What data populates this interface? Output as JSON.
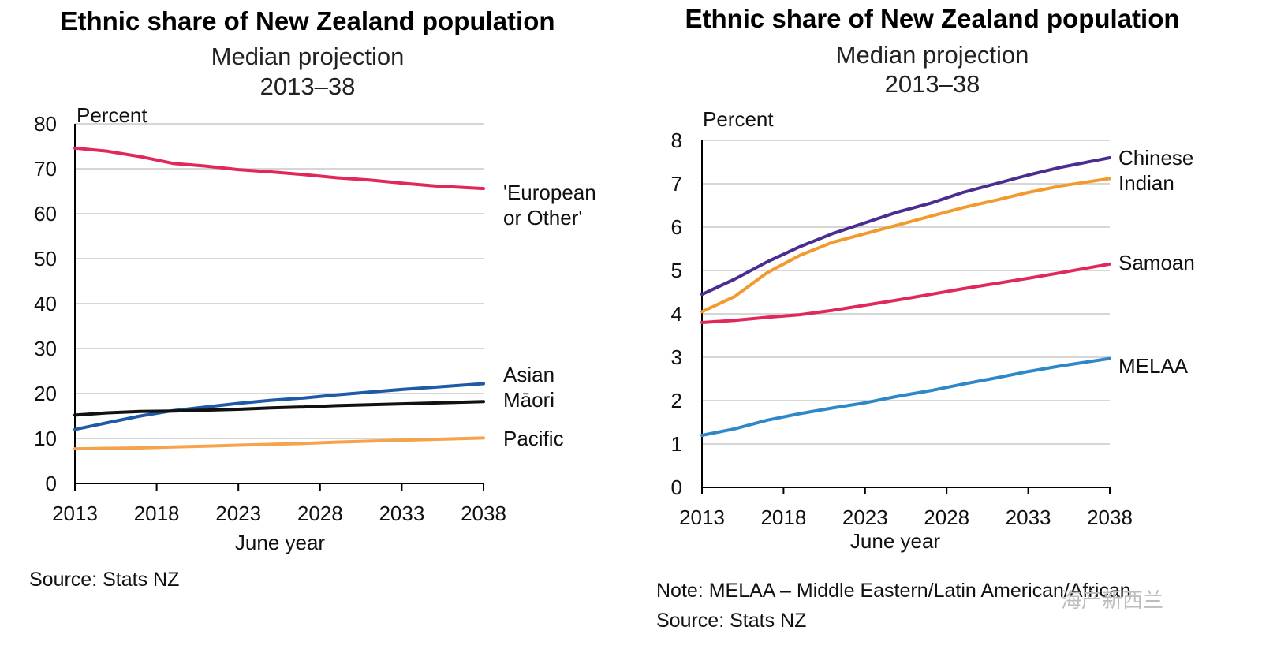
{
  "chart_data": [
    {
      "type": "line",
      "title": "Ethnic share of New Zealand population",
      "subtitle": "Median projection",
      "period": "2013–38",
      "ylabel": "Percent",
      "xlabel": "June year",
      "ylim": [
        0,
        80
      ],
      "yticks": [
        "0",
        "10",
        "20",
        "30",
        "40",
        "50",
        "60",
        "70",
        "80"
      ],
      "xlim": [
        2013,
        2038
      ],
      "xticks": [
        "2013",
        "2018",
        "2023",
        "2028",
        "2033",
        "2038"
      ],
      "grid": true,
      "x": [
        2013,
        2015,
        2017,
        2019,
        2021,
        2023,
        2025,
        2027,
        2029,
        2031,
        2033,
        2035,
        2038
      ],
      "series": [
        {
          "name": "'European or Other'",
          "label_lines": [
            "'European",
            "or Other'"
          ],
          "color": "#e0285a",
          "values": [
            74.6,
            73.9,
            72.7,
            71.2,
            70.6,
            69.8,
            69.3,
            68.7,
            68.0,
            67.5,
            66.8,
            66.2,
            65.6
          ]
        },
        {
          "name": "Asian",
          "label_lines": [
            "Asian"
          ],
          "color": "#1f5aa6",
          "values": [
            12.0,
            13.5,
            15.0,
            16.2,
            17.0,
            17.8,
            18.5,
            19.0,
            19.7,
            20.3,
            20.9,
            21.4,
            22.2
          ]
        },
        {
          "name": "Māori",
          "label_lines": [
            "Māori"
          ],
          "color": "#111111",
          "values": [
            15.2,
            15.7,
            16.0,
            16.1,
            16.3,
            16.5,
            16.8,
            17.0,
            17.3,
            17.5,
            17.7,
            17.9,
            18.2
          ]
        },
        {
          "name": "Pacific",
          "label_lines": [
            "Pacific"
          ],
          "color": "#f5a34c",
          "values": [
            7.7,
            7.8,
            7.9,
            8.1,
            8.3,
            8.5,
            8.7,
            8.9,
            9.2,
            9.4,
            9.6,
            9.8,
            10.1
          ]
        }
      ],
      "footer": [
        "Source: Stats NZ"
      ]
    },
    {
      "type": "line",
      "title": "Ethnic share of New Zealand population",
      "subtitle": "Median projection",
      "period": "2013–38",
      "ylabel": "Percent",
      "xlabel": "June year",
      "ylim": [
        0,
        8
      ],
      "yticks": [
        "0",
        "1",
        "2",
        "3",
        "4",
        "5",
        "6",
        "7",
        "8"
      ],
      "xlim": [
        2013,
        2038
      ],
      "xticks": [
        "2013",
        "2018",
        "2023",
        "2028",
        "2033",
        "2038"
      ],
      "grid": true,
      "x": [
        2013,
        2015,
        2017,
        2019,
        2021,
        2023,
        2025,
        2027,
        2029,
        2031,
        2033,
        2035,
        2038
      ],
      "series": [
        {
          "name": "Chinese",
          "label_lines": [
            "Chinese"
          ],
          "color": "#4b2d91",
          "values": [
            4.45,
            4.8,
            5.2,
            5.55,
            5.85,
            6.1,
            6.35,
            6.55,
            6.8,
            7.0,
            7.2,
            7.38,
            7.6
          ]
        },
        {
          "name": "Indian",
          "label_lines": [
            "Indian"
          ],
          "color": "#f29a2e",
          "values": [
            4.05,
            4.4,
            4.95,
            5.35,
            5.65,
            5.85,
            6.05,
            6.25,
            6.45,
            6.62,
            6.8,
            6.95,
            7.12
          ]
        },
        {
          "name": "Samoan",
          "label_lines": [
            "Samoan"
          ],
          "color": "#e0285a",
          "values": [
            3.8,
            3.85,
            3.92,
            3.98,
            4.08,
            4.2,
            4.32,
            4.45,
            4.58,
            4.7,
            4.82,
            4.95,
            5.15
          ]
        },
        {
          "name": "MELAA",
          "label_lines": [
            "MELAA"
          ],
          "color": "#2e87c8",
          "values": [
            1.2,
            1.35,
            1.55,
            1.7,
            1.83,
            1.95,
            2.1,
            2.23,
            2.38,
            2.52,
            2.67,
            2.8,
            2.97
          ]
        }
      ],
      "footer": [
        "Note: MELAA – Middle Eastern/Latin American/African",
        "Source: Stats NZ"
      ]
    }
  ],
  "watermark": "海产新西兰"
}
